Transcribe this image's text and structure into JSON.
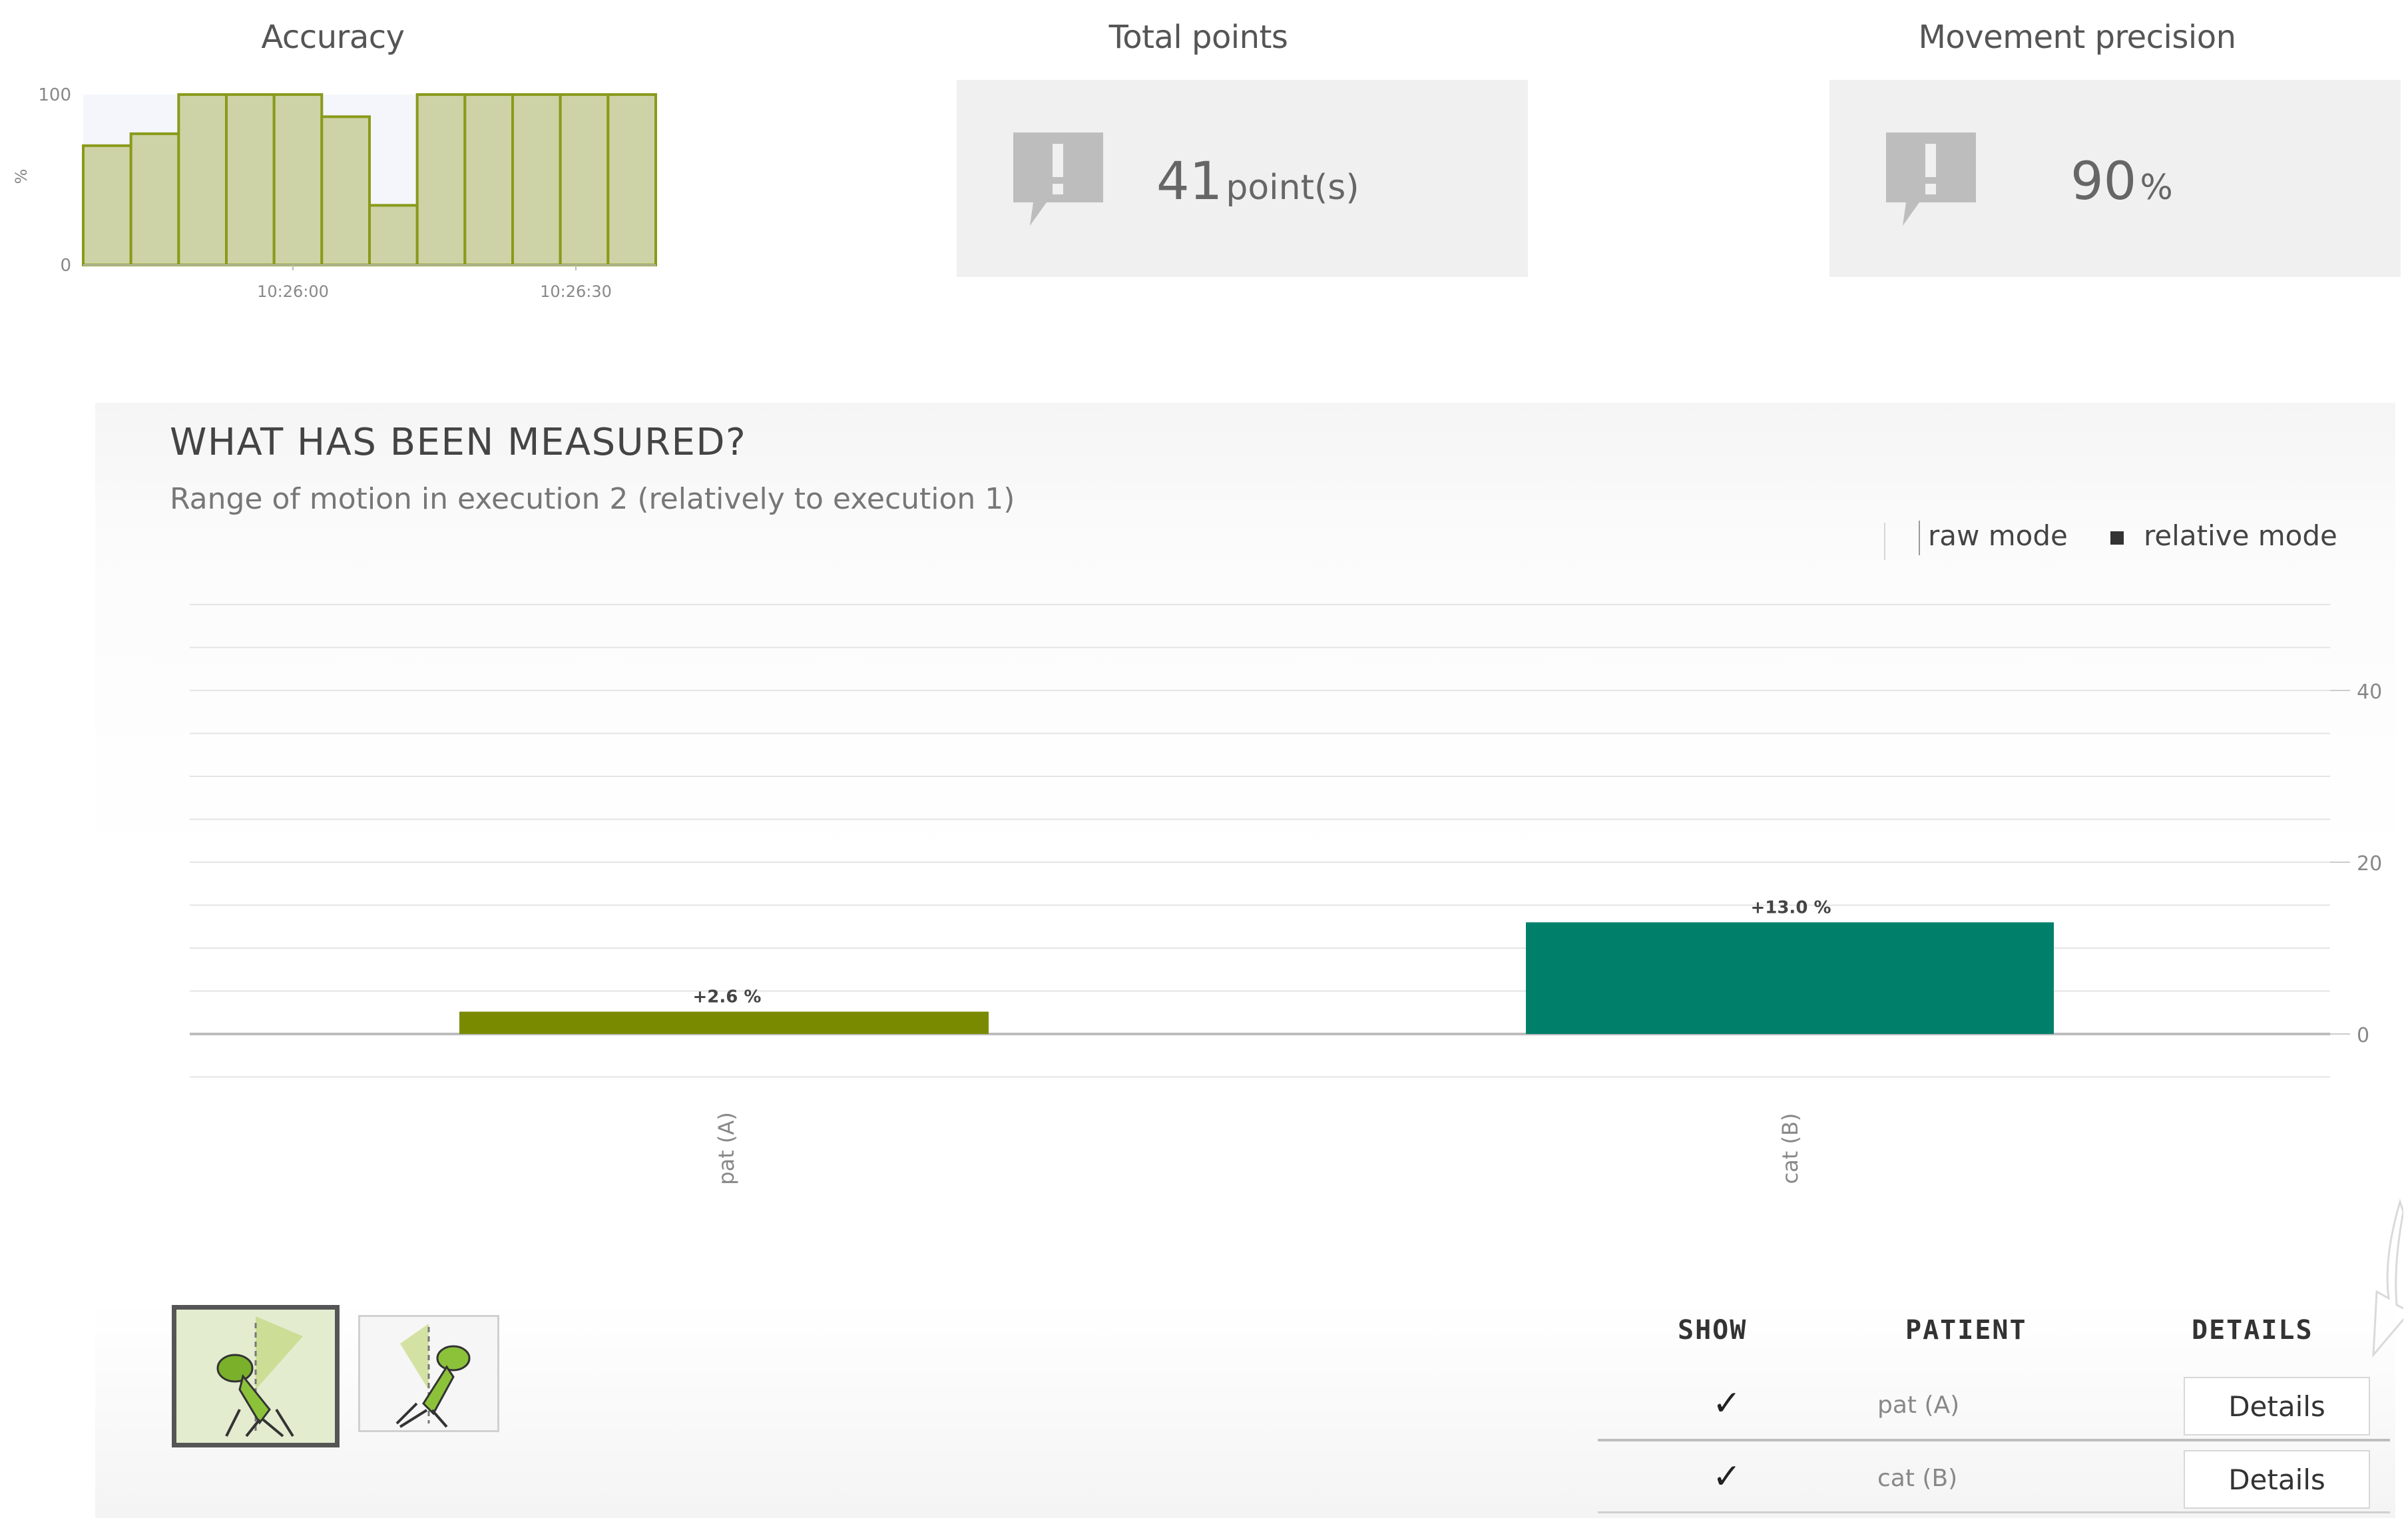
{
  "cards": {
    "accuracy": {
      "title": "Accuracy"
    },
    "total_points": {
      "title": "Total points",
      "value": "41",
      "unit": "point(s)",
      "icon": "exclamation-speech-icon"
    },
    "movement_precision": {
      "title": "Movement precision",
      "value": "90",
      "unit": "%",
      "icon": "exclamation-speech-icon"
    }
  },
  "measured": {
    "title": "WHAT HAS BEEN MEASURED?",
    "subtitle": "Range of motion in execution 2 (relatively to execution 1)",
    "legend": {
      "raw": "raw mode",
      "relative": "relative mode"
    }
  },
  "thumbnails": [
    {
      "icon": "grasshopper-exercise-icon",
      "selected": true
    },
    {
      "icon": "grasshopper-exercise-alt-icon",
      "selected": false
    }
  ],
  "table": {
    "headers": {
      "show": "SHOW",
      "patient": "PATIENT",
      "details": "DETAILS"
    },
    "rows": [
      {
        "show": true,
        "check": "✓",
        "patient": "pat (A)",
        "details_label": "Details"
      },
      {
        "show": true,
        "check": "✓",
        "patient": "cat (B)",
        "details_label": "Details"
      }
    ]
  },
  "chart_data": [
    {
      "type": "bar",
      "title": "Accuracy",
      "ylabel": "%",
      "ylim": [
        0,
        100
      ],
      "yticks": [
        0,
        100
      ],
      "xticks": [
        "10:26:00",
        "10:26:30"
      ],
      "values": [
        70,
        77,
        100,
        100,
        100,
        87,
        35,
        100,
        100,
        100,
        100,
        100
      ],
      "color": "#8a9a1a",
      "fill": "#cdd3a6"
    },
    {
      "type": "bar",
      "categories": [
        "pat (A)",
        "cat (B)"
      ],
      "values": [
        2.6,
        13.0
      ],
      "data_labels": [
        "+2.6 %",
        "+13.0 %"
      ],
      "colors": [
        "#7a8a00",
        "#007f6b"
      ],
      "ylim": [
        -5,
        50
      ],
      "yticks": [
        0,
        20,
        40
      ],
      "grid": true
    }
  ]
}
